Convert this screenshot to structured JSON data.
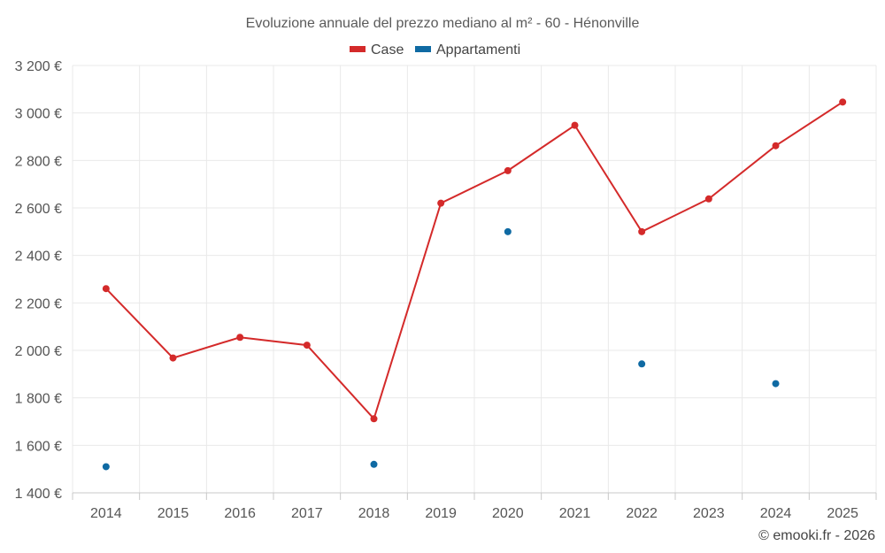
{
  "chart_data": {
    "type": "line",
    "title": "Evoluzione annuale del prezzo mediano al m² - 60 - Hénonville",
    "categories": [
      "2014",
      "2015",
      "2016",
      "2017",
      "2018",
      "2019",
      "2020",
      "2021",
      "2022",
      "2023",
      "2024",
      "2025"
    ],
    "y_ticks": [
      "1 400 €",
      "1 600 €",
      "1 800 €",
      "2 000 €",
      "2 200 €",
      "2 400 €",
      "2 600 €",
      "2 800 €",
      "3 000 €",
      "3 200 €"
    ],
    "ylim": [
      1400,
      3200
    ],
    "grid": true,
    "legend_position": "top-center",
    "series": [
      {
        "name": "Case",
        "color": "#d42a2a",
        "style": "line-with-markers",
        "values": [
          2260,
          1968,
          2055,
          2022,
          1712,
          2620,
          2757,
          2948,
          2500,
          2638,
          2862,
          3046
        ]
      },
      {
        "name": "Appartamenti",
        "color": "#0f6aa3",
        "style": "markers-only",
        "values": [
          1510,
          null,
          null,
          null,
          1520,
          null,
          2500,
          null,
          1943,
          null,
          1860,
          null
        ]
      }
    ]
  },
  "credit": "© emooki.fr - 2026"
}
